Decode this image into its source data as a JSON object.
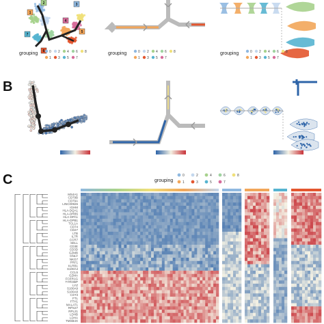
{
  "panels": {
    "b": "B",
    "c": "C"
  },
  "grouping": {
    "title": "grouping",
    "items": [
      {
        "label": "0",
        "color": "#8fb8e0"
      },
      {
        "label": "1",
        "color": "#f2a65a"
      },
      {
        "label": "2",
        "color": "#c3d7ee"
      },
      {
        "label": "3",
        "color": "#e3562f"
      },
      {
        "label": "4",
        "color": "#a7d28d"
      },
      {
        "label": "5",
        "color": "#56b4d0"
      },
      {
        "label": "6",
        "color": "#9fd3a0"
      },
      {
        "label": "7",
        "color": "#d66b9a"
      },
      {
        "label": "8",
        "color": "#f0e07a"
      }
    ]
  },
  "trajectory_nodes": [
    "1",
    "2",
    "3",
    "4",
    "5",
    "6",
    "7"
  ],
  "colorbar": {
    "low": "#2e64a8",
    "mid": "#f4f1e4",
    "high": "#c8333a"
  },
  "heatmap_genes": [
    "MS4A1",
    "CD79B",
    "CD79A",
    "LINC00926",
    "IGHM",
    "HLA-DQA1",
    "HLA-DRB5",
    "HLA-DPA1",
    "HLA-DPB1",
    "TCL1A",
    "CD74",
    "CD27",
    "LTB",
    "IL7R",
    "CCR7",
    "SELL",
    "CD3E",
    "CD3D",
    "GZMB",
    "GNLY",
    "NKG7",
    "PRF1",
    "KLRB1",
    "S100A4",
    "CCL5",
    "GZMA",
    "FCER1G",
    "TYROBP",
    "LYZ",
    "S100A9",
    "S100A8",
    "CST3",
    "FTL",
    "FTH1",
    "MALAT1",
    "RPS27",
    "RPL21",
    "LDHB",
    "LDHA",
    "TMSB4X"
  ]
}
